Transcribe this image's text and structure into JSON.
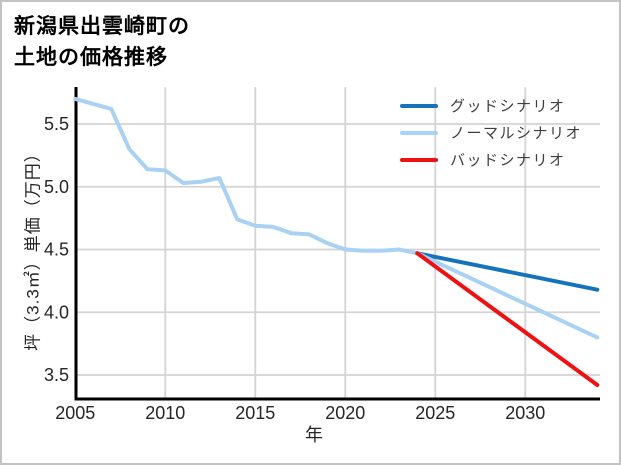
{
  "title": {
    "line1": "新潟県出雲崎町の",
    "line2": "土地の価格推移"
  },
  "legend": [
    {
      "label": "グッドシナリオ",
      "color": "#1673ba"
    },
    {
      "label": "ノーマルシナリオ",
      "color": "#a8d1f3"
    },
    {
      "label": "バッドシナリオ",
      "color": "#ee1111"
    }
  ],
  "colors": {
    "spine": "#000000",
    "grid": "#d3d3d3",
    "tick_text": "#262626"
  },
  "chart_data": {
    "type": "line",
    "title": "新潟県出雲崎町の土地の価格推移",
    "xlabel": "年",
    "ylabel": "坪（3.3㎡）単価（万円）",
    "xlim": [
      2005,
      2035.5
    ],
    "ylim": [
      3.3,
      5.8
    ],
    "grid": true,
    "legend_position": "upper-right",
    "x_ticks": [
      2005,
      2010,
      2015,
      2020,
      2025,
      2030
    ],
    "y_ticks": [
      5.5,
      5.0,
      4.5,
      4.0,
      3.5
    ],
    "series": [
      {
        "key": "historical",
        "name": "ノーマルシナリオ",
        "in_legend": false,
        "color": "#a8d1f3",
        "x": [
          2005,
          2006,
          2007,
          2008,
          2009,
          2010,
          2011,
          2012,
          2013,
          2014,
          2015,
          2016,
          2017,
          2018,
          2019,
          2020,
          2021,
          2022,
          2023,
          2024
        ],
        "y": [
          5.7,
          5.66,
          5.62,
          5.3,
          5.14,
          5.13,
          5.03,
          5.04,
          5.07,
          4.74,
          4.69,
          4.68,
          4.63,
          4.62,
          4.55,
          4.5,
          4.49,
          4.49,
          4.5,
          4.47
        ]
      },
      {
        "key": "good-scenario",
        "name": "グッドシナリオ",
        "in_legend": true,
        "color": "#1673ba",
        "x": [
          2024,
          2034
        ],
        "y": [
          4.47,
          4.18
        ]
      },
      {
        "key": "normal-scenario",
        "name": "ノーマルシナリオ",
        "in_legend": true,
        "color": "#a8d1f3",
        "x": [
          2024,
          2034
        ],
        "y": [
          4.47,
          3.8
        ]
      },
      {
        "key": "bad-scenario",
        "name": "バッドシナリオ",
        "in_legend": true,
        "color": "#ee1111",
        "x": [
          2024,
          2034
        ],
        "y": [
          4.47,
          3.42
        ]
      }
    ]
  }
}
